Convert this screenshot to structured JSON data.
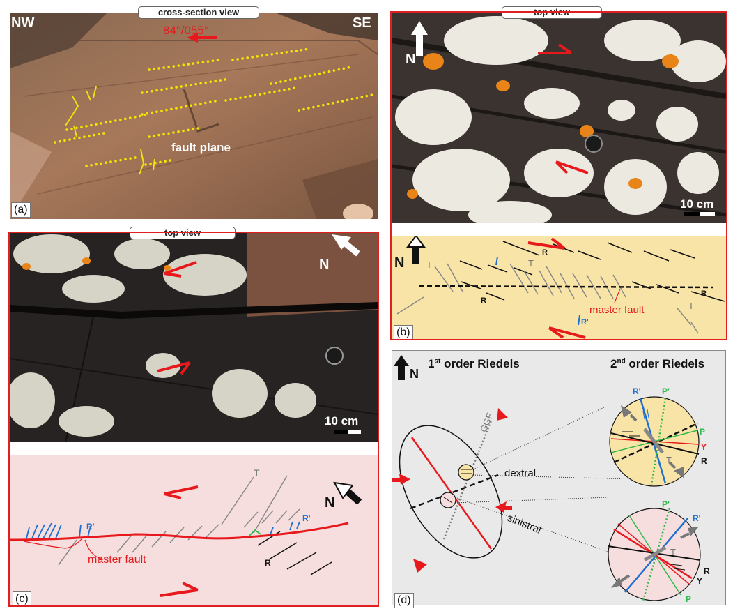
{
  "panel_a": {
    "tag": "(a)",
    "view_label": "cross-section view",
    "nw": "NW",
    "se": "SE",
    "orientation": "84°/055°",
    "fault_plane": "fault plane"
  },
  "panel_b": {
    "tag": "(b)",
    "view_label": "top view",
    "north": "N",
    "scale": "10 cm",
    "north_sketch": "N",
    "r1": "R",
    "r2": "R",
    "r3": "R",
    "t1": "T",
    "t2": "T",
    "t3": "T",
    "r_prime": "R'",
    "master_fault": "master fault"
  },
  "panel_c": {
    "tag": "(c)",
    "view_label": "top view",
    "north": "N",
    "scale": "10 cm",
    "north_sketch": "N",
    "t": "T",
    "r_prime_1": "R'",
    "r_prime_2": "R'",
    "r": "R",
    "master_fault": "master fault"
  },
  "panel_d": {
    "tag": "(d)",
    "north": "N",
    "first_order": "1",
    "first_order_sup": "st",
    "first_order_rest": " order Riedels",
    "second_order": "2",
    "second_order_sup": "nd",
    "second_order_rest": " order Riedels",
    "ggf": "GGF",
    "dextral": "dextral",
    "sinistral": "sinistral",
    "upper": {
      "r_prime": "R'",
      "p_prime": "P'",
      "p": "P",
      "y": "Y",
      "t": "T",
      "r": "R"
    },
    "lower": {
      "p_prime": "P'",
      "r_prime": "R'",
      "t": "T",
      "r": "R",
      "y": "Y",
      "p": "P"
    }
  },
  "colors": {
    "frame_red": "#e02020",
    "fault_red": "#e8191c",
    "dots_yellow": "#f5e600",
    "riedel_blue": "#1f6fd0",
    "p_green": "#2eb84a",
    "sketch_yellow": "#f9e4a8",
    "sketch_pink": "#f7dede",
    "sketch_gray": "#e9e9e9"
  }
}
